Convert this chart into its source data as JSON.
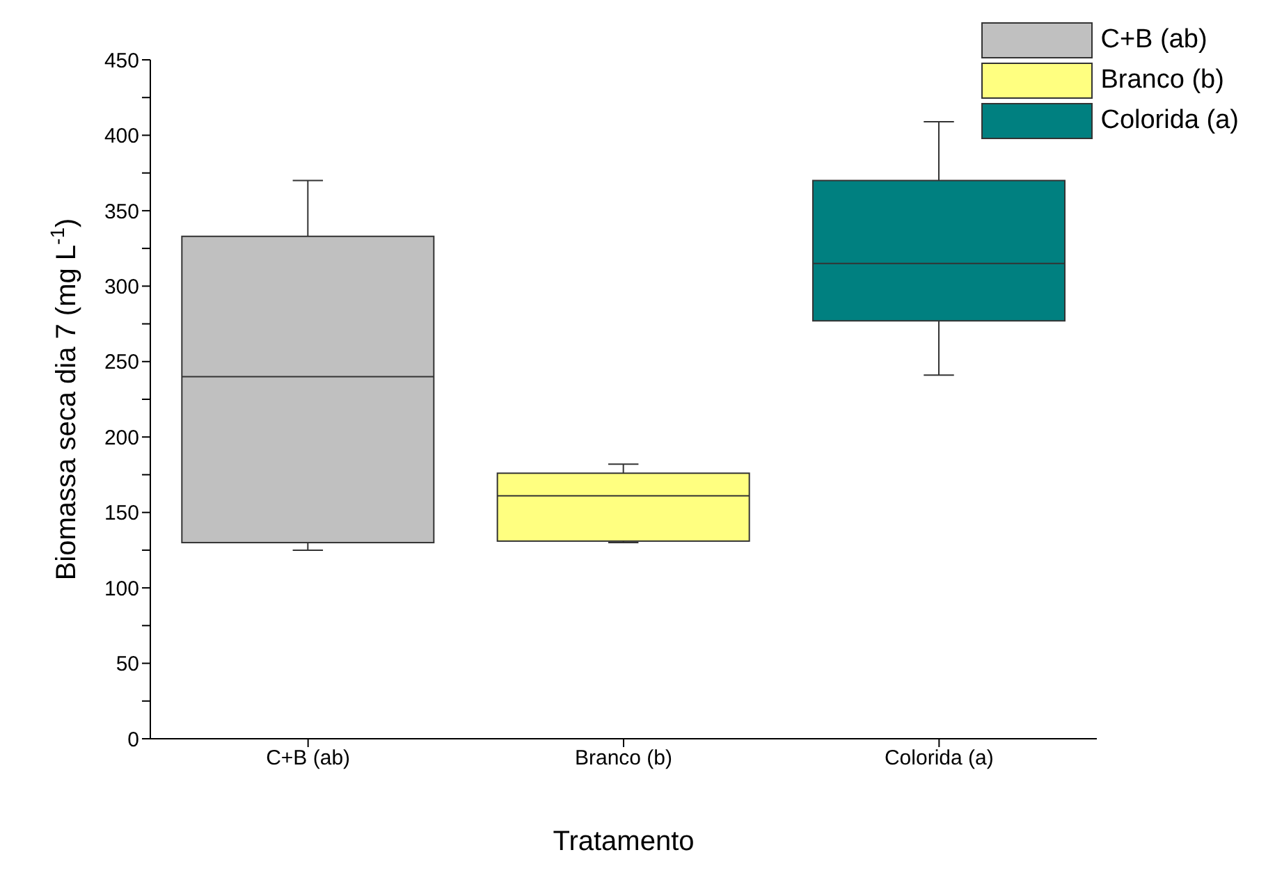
{
  "chart_data": {
    "type": "box",
    "xlabel": "Tratamento",
    "ylabel": "Biomassa seca dia 7 (mg L$^{-1}$)",
    "categories": [
      "C+B (ab)",
      "Branco (b)",
      "Colorida (a)"
    ],
    "series": [
      {
        "name": "C+B (ab)",
        "color": "#c0c0c0",
        "boxes": [
          {
            "low": 125,
            "q1": 130,
            "median": 240,
            "q3": 333,
            "high": 370
          },
          null,
          null
        ]
      },
      {
        "name": "Branco (b)",
        "color": "#ffff80",
        "boxes": [
          null,
          {
            "low": 130,
            "q1": 131,
            "median": 161,
            "q3": 176,
            "high": 182
          },
          null
        ]
      },
      {
        "name": "Colorida (a)",
        "color": "#008080",
        "boxes": [
          null,
          null,
          {
            "low": 241,
            "q1": 277,
            "median": 315,
            "q3": 370,
            "high": 409
          }
        ]
      }
    ],
    "ylim": [
      0,
      450
    ],
    "yticks": [
      0,
      {
        "value": 25,
        "label": null
      },
      50,
      {
        "value": 75,
        "label": null
      },
      100,
      {
        "value": 125,
        "label": null
      },
      150,
      {
        "value": 175,
        "label": null
      },
      200,
      {
        "value": 225,
        "label": null
      },
      250,
      {
        "value": 275,
        "label": null
      },
      300,
      {
        "value": 325,
        "label": null
      },
      350,
      {
        "value": 375,
        "label": null
      },
      400,
      {
        "value": 425,
        "label": null
      },
      450
    ],
    "legend": "top right"
  }
}
